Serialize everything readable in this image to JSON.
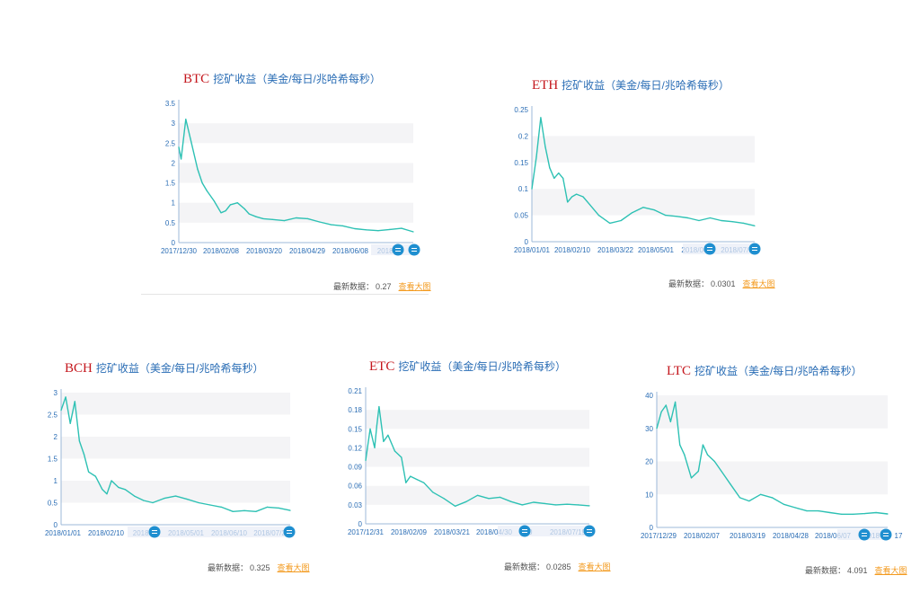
{
  "colors": {
    "line": "#2ec1b4",
    "band": "#f4f4f6",
    "axis": "#2a6db5",
    "coin": "#c4161c",
    "link": "#f39a1e",
    "handle": "#1f8fd0"
  },
  "footer_label": "最新数据：",
  "more_label": "查看大图",
  "unit_label": "挖矿收益（美金/每日/兆哈希每秒）",
  "panels": [
    {
      "coin": "BTC",
      "latest": "0.27",
      "chart_data": {
        "type": "line",
        "ylim": [
          0,
          3.5
        ],
        "yticks": [
          "0",
          "0.5",
          "1",
          "1.5",
          "2",
          "2.5",
          "3",
          "3.5"
        ],
        "xticks": [
          "2017/12/30",
          "2018/02/08",
          "2018/03/20",
          "2018/04/29",
          "2018/06/08",
          "2018/0"
        ],
        "x": [
          0,
          0.01,
          0.03,
          0.05,
          0.08,
          0.1,
          0.12,
          0.15,
          0.18,
          0.2,
          0.22,
          0.25,
          0.28,
          0.3,
          0.33,
          0.36,
          0.4,
          0.45,
          0.5,
          0.55,
          0.6,
          0.65,
          0.7,
          0.75,
          0.8,
          0.85,
          0.9,
          0.95,
          1.0
        ],
        "values": [
          2.4,
          2.1,
          3.1,
          2.6,
          1.85,
          1.5,
          1.3,
          1.05,
          0.75,
          0.8,
          0.95,
          1.0,
          0.85,
          0.72,
          0.65,
          0.6,
          0.58,
          0.55,
          0.62,
          0.6,
          0.52,
          0.45,
          0.42,
          0.35,
          0.32,
          0.3,
          0.33,
          0.36,
          0.27
        ]
      }
    },
    {
      "coin": "ETH",
      "latest": "0.0301",
      "chart_data": {
        "type": "line",
        "ylim": [
          0,
          0.25
        ],
        "yticks": [
          "0",
          "0.05",
          "0.1",
          "0.15",
          "0.2",
          "0.25"
        ],
        "xticks": [
          "2018/01/01",
          "2018/02/10",
          "2018/03/22",
          "2018/05/01",
          "2018/06/",
          "2018/07/2"
        ],
        "x": [
          0,
          0.02,
          0.04,
          0.06,
          0.08,
          0.1,
          0.12,
          0.14,
          0.16,
          0.18,
          0.2,
          0.23,
          0.26,
          0.3,
          0.35,
          0.4,
          0.45,
          0.5,
          0.55,
          0.6,
          0.65,
          0.7,
          0.75,
          0.8,
          0.85,
          0.9,
          0.95,
          1.0
        ],
        "values": [
          0.1,
          0.16,
          0.235,
          0.18,
          0.14,
          0.12,
          0.13,
          0.12,
          0.075,
          0.085,
          0.09,
          0.085,
          0.07,
          0.05,
          0.035,
          0.04,
          0.055,
          0.065,
          0.06,
          0.05,
          0.048,
          0.045,
          0.04,
          0.045,
          0.04,
          0.038,
          0.035,
          0.0301
        ]
      }
    },
    {
      "coin": "BCH",
      "latest": "0.325",
      "chart_data": {
        "type": "line",
        "ylim": [
          0,
          3
        ],
        "yticks": [
          "0",
          "0.5",
          "1",
          "1.5",
          "2",
          "2.5",
          "3"
        ],
        "xticks": [
          "2018/01/01",
          "2018/02/10",
          "2018/0",
          "2018/05/01",
          "2018/06/10",
          "2018/07/2"
        ],
        "x": [
          0,
          0.02,
          0.04,
          0.06,
          0.08,
          0.1,
          0.12,
          0.15,
          0.18,
          0.2,
          0.22,
          0.25,
          0.28,
          0.32,
          0.36,
          0.4,
          0.45,
          0.5,
          0.55,
          0.6,
          0.65,
          0.7,
          0.75,
          0.8,
          0.85,
          0.9,
          0.95,
          1.0
        ],
        "values": [
          2.6,
          2.9,
          2.3,
          2.8,
          1.9,
          1.6,
          1.2,
          1.1,
          0.8,
          0.7,
          1.0,
          0.85,
          0.8,
          0.65,
          0.55,
          0.5,
          0.6,
          0.65,
          0.58,
          0.5,
          0.45,
          0.4,
          0.3,
          0.32,
          0.3,
          0.4,
          0.38,
          0.325
        ]
      }
    },
    {
      "coin": "ETC",
      "latest": "0.0285",
      "chart_data": {
        "type": "line",
        "ylim": [
          0,
          0.21
        ],
        "yticks": [
          "0",
          "0.03",
          "0.06",
          "0.09",
          "0.12",
          "0.15",
          "0.18",
          "0.21"
        ],
        "xticks": [
          "2017/12/31",
          "2018/02/09",
          "2018/03/21",
          "2018/04/30",
          "20",
          "2018/07/19"
        ],
        "x": [
          0,
          0.02,
          0.04,
          0.05,
          0.06,
          0.08,
          0.1,
          0.13,
          0.16,
          0.18,
          0.2,
          0.23,
          0.26,
          0.3,
          0.35,
          0.4,
          0.45,
          0.5,
          0.55,
          0.6,
          0.65,
          0.7,
          0.75,
          0.8,
          0.85,
          0.9,
          0.95,
          1.0
        ],
        "values": [
          0.1,
          0.15,
          0.12,
          0.155,
          0.185,
          0.13,
          0.14,
          0.115,
          0.105,
          0.065,
          0.075,
          0.07,
          0.065,
          0.05,
          0.04,
          0.028,
          0.035,
          0.045,
          0.04,
          0.042,
          0.035,
          0.03,
          0.034,
          0.032,
          0.03,
          0.031,
          0.03,
          0.0285
        ]
      }
    },
    {
      "coin": "LTC",
      "latest": "4.091",
      "chart_data": {
        "type": "line",
        "ylim": [
          0,
          40
        ],
        "yticks": [
          "0",
          "10",
          "20",
          "30",
          "40"
        ],
        "xticks": [
          "2017/12/29",
          "2018/02/07",
          "2018/03/19",
          "2018/04/28",
          "2018/06/07",
          "2018",
          "17"
        ],
        "x": [
          0,
          0.02,
          0.04,
          0.06,
          0.08,
          0.1,
          0.12,
          0.15,
          0.18,
          0.2,
          0.22,
          0.25,
          0.28,
          0.32,
          0.36,
          0.4,
          0.45,
          0.5,
          0.55,
          0.6,
          0.65,
          0.7,
          0.75,
          0.8,
          0.85,
          0.9,
          0.95,
          1.0
        ],
        "values": [
          30,
          35,
          37,
          32,
          38,
          25,
          22,
          15,
          17,
          25,
          22,
          20,
          17,
          13,
          9,
          8,
          10,
          9,
          7,
          6,
          5,
          5,
          4.5,
          4,
          4,
          4.2,
          4.5,
          4.091
        ]
      }
    }
  ]
}
